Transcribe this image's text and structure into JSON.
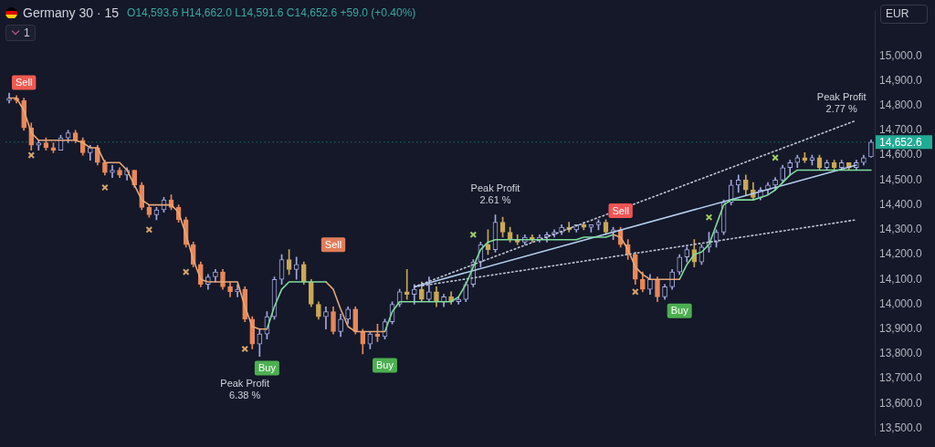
{
  "chart_data": {
    "type": "candlestick",
    "title": "Germany 30 · 15",
    "subtitle": "O14,593.6 H14,662.0 L14,591.6 C14,652.6 +59.0 (+0.40%)",
    "ylabel": "EUR",
    "categories": [
      null,
      null,
      null,
      null,
      null,
      null,
      null,
      null,
      null,
      null,
      null,
      null,
      null,
      null,
      null,
      null,
      null,
      null,
      null,
      null,
      null,
      null,
      null,
      null,
      null,
      null,
      null,
      null,
      null,
      null,
      null,
      null,
      null,
      null,
      null,
      null,
      null,
      null,
      null,
      null,
      null,
      null,
      null,
      null,
      null,
      null,
      null,
      null,
      null,
      null,
      null,
      null,
      null,
      null,
      null,
      null,
      null,
      null,
      null,
      null,
      null,
      null,
      null,
      null,
      null,
      null,
      null,
      null,
      null,
      null,
      null,
      null,
      null,
      null,
      null,
      null,
      null,
      null,
      null,
      null,
      null,
      null,
      null,
      null,
      null,
      null,
      null,
      null,
      null,
      null,
      null,
      null,
      null,
      null,
      null,
      null,
      null,
      null,
      null,
      null,
      null,
      null,
      null,
      null,
      null,
      null,
      null,
      null,
      null,
      null,
      null,
      null,
      null,
      null,
      null,
      null,
      null,
      null
    ],
    "ohlc": [
      [
        14820,
        14850,
        14810,
        14830
      ],
      [
        14830,
        14840,
        14810,
        14820
      ],
      [
        14820,
        14830,
        14700,
        14710
      ],
      [
        14710,
        14730,
        14620,
        14640
      ],
      [
        14640,
        14660,
        14620,
        14650
      ],
      [
        14650,
        14670,
        14620,
        14630
      ],
      [
        14630,
        14650,
        14610,
        14620
      ],
      [
        14620,
        14680,
        14620,
        14670
      ],
      [
        14670,
        14700,
        14650,
        14690
      ],
      [
        14690,
        14700,
        14650,
        14660
      ],
      [
        14660,
        14670,
        14600,
        14610
      ],
      [
        14610,
        14640,
        14580,
        14630
      ],
      [
        14630,
        14640,
        14560,
        14570
      ],
      [
        14570,
        14580,
        14520,
        14530
      ],
      [
        14530,
        14560,
        14510,
        14540
      ],
      [
        14540,
        14550,
        14510,
        14520
      ],
      [
        14520,
        14550,
        14500,
        14540
      ],
      [
        14540,
        14540,
        14470,
        14480
      ],
      [
        14480,
        14490,
        14380,
        14390
      ],
      [
        14390,
        14400,
        14350,
        14360
      ],
      [
        14360,
        14390,
        14340,
        14380
      ],
      [
        14380,
        14430,
        14370,
        14420
      ],
      [
        14420,
        14440,
        14380,
        14390
      ],
      [
        14390,
        14400,
        14330,
        14340
      ],
      [
        14340,
        14350,
        14230,
        14240
      ],
      [
        14240,
        14250,
        14150,
        14160
      ],
      [
        14160,
        14170,
        14070,
        14080
      ],
      [
        14080,
        14120,
        14060,
        14110
      ],
      [
        14110,
        14140,
        14090,
        14130
      ],
      [
        14130,
        14140,
        14060,
        14070
      ],
      [
        14070,
        14090,
        14030,
        14050
      ],
      [
        14050,
        14080,
        14030,
        14060
      ],
      [
        14060,
        14070,
        13930,
        13940
      ],
      [
        13940,
        13950,
        13820,
        13840
      ],
      [
        13840,
        13900,
        13790,
        13880
      ],
      [
        13880,
        13970,
        13860,
        13950
      ],
      [
        13950,
        14110,
        13940,
        14100
      ],
      [
        14100,
        14200,
        14080,
        14180
      ],
      [
        14180,
        14220,
        14120,
        14140
      ],
      [
        14140,
        14190,
        14100,
        14160
      ],
      [
        14160,
        14170,
        14080,
        14090
      ],
      [
        14090,
        14100,
        13990,
        14000
      ],
      [
        14000,
        14010,
        13940,
        13950
      ],
      [
        13950,
        13990,
        13900,
        13970
      ],
      [
        13970,
        13990,
        13880,
        13890
      ],
      [
        13890,
        13960,
        13870,
        13940
      ],
      [
        13940,
        13990,
        13920,
        13980
      ],
      [
        13980,
        13990,
        13880,
        13890
      ],
      [
        13890,
        13900,
        13800,
        13840
      ],
      [
        13840,
        13890,
        13820,
        13880
      ],
      [
        13880,
        13920,
        13850,
        13870
      ],
      [
        13870,
        13940,
        13860,
        13930
      ],
      [
        13930,
        14010,
        13920,
        14000
      ],
      [
        14000,
        14060,
        13990,
        14050
      ],
      [
        14050,
        14140,
        14020,
        14040
      ],
      [
        14040,
        14080,
        14000,
        14060
      ],
      [
        14060,
        14090,
        14010,
        14020
      ],
      [
        14020,
        14110,
        14010,
        14050
      ],
      [
        14050,
        14070,
        13990,
        14010
      ],
      [
        14010,
        14040,
        13990,
        14030
      ],
      [
        14030,
        14050,
        14000,
        14010
      ],
      [
        14010,
        14030,
        14000,
        14020
      ],
      [
        14020,
        14090,
        14010,
        14080
      ],
      [
        14080,
        14180,
        14070,
        14170
      ],
      [
        14170,
        14250,
        14150,
        14240
      ],
      [
        14240,
        14300,
        14200,
        14220
      ],
      [
        14220,
        14360,
        14210,
        14330
      ],
      [
        14330,
        14350,
        14270,
        14290
      ],
      [
        14290,
        14310,
        14250,
        14260
      ],
      [
        14260,
        14280,
        14240,
        14250
      ],
      [
        14250,
        14280,
        14240,
        14270
      ],
      [
        14270,
        14280,
        14250,
        14260
      ],
      [
        14260,
        14280,
        14250,
        14270
      ],
      [
        14270,
        14290,
        14250,
        14280
      ],
      [
        14280,
        14300,
        14270,
        14290
      ],
      [
        14290,
        14320,
        14280,
        14310
      ],
      [
        14310,
        14330,
        14290,
        14300
      ],
      [
        14300,
        14320,
        14290,
        14320
      ],
      [
        14320,
        14330,
        14300,
        14310
      ],
      [
        14310,
        14320,
        14290,
        14320
      ],
      [
        14320,
        14340,
        14300,
        14330
      ],
      [
        14330,
        14340,
        14280,
        14290
      ],
      [
        14290,
        14310,
        14260,
        14300
      ],
      [
        14300,
        14310,
        14230,
        14240
      ],
      [
        14240,
        14260,
        14180,
        14200
      ],
      [
        14200,
        14210,
        14080,
        14100
      ],
      [
        14100,
        14130,
        14050,
        14060
      ],
      [
        14060,
        14120,
        14040,
        14100
      ],
      [
        14100,
        14110,
        14010,
        14030
      ],
      [
        14030,
        14080,
        14020,
        14070
      ],
      [
        14070,
        14140,
        14060,
        14130
      ],
      [
        14130,
        14200,
        14120,
        14190
      ],
      [
        14190,
        14230,
        14170,
        14220
      ],
      [
        14220,
        14260,
        14150,
        14170
      ],
      [
        14170,
        14240,
        14160,
        14230
      ],
      [
        14230,
        14290,
        14210,
        14250
      ],
      [
        14250,
        14300,
        14230,
        14290
      ],
      [
        14290,
        14420,
        14280,
        14410
      ],
      [
        14410,
        14500,
        14400,
        14480
      ],
      [
        14480,
        14520,
        14450,
        14500
      ],
      [
        14500,
        14520,
        14440,
        14460
      ],
      [
        14460,
        14490,
        14420,
        14430
      ],
      [
        14430,
        14470,
        14420,
        14460
      ],
      [
        14460,
        14490,
        14440,
        14480
      ],
      [
        14480,
        14510,
        14460,
        14500
      ],
      [
        14500,
        14560,
        14490,
        14550
      ],
      [
        14550,
        14580,
        14520,
        14570
      ],
      [
        14570,
        14600,
        14550,
        14590
      ],
      [
        14590,
        14610,
        14570,
        14580
      ],
      [
        14580,
        14600,
        14560,
        14590
      ],
      [
        14590,
        14600,
        14540,
        14550
      ],
      [
        14550,
        14580,
        14540,
        14570
      ],
      [
        14570,
        14580,
        14540,
        14550
      ],
      [
        14550,
        14580,
        14540,
        14570
      ],
      [
        14570,
        14570,
        14540,
        14550
      ],
      [
        14550,
        14580,
        14540,
        14570
      ],
      [
        14570,
        14600,
        14560,
        14590
      ],
      [
        14593.6,
        14662.0,
        14591.6,
        14652.6
      ]
    ],
    "colors": [
      "#a3a8e0",
      "#e8885a",
      "#e8885a",
      "#e8885a",
      "#a3a8e0",
      "#e8885a",
      "#e8885a",
      "#a3a8e0",
      "#a3a8e0",
      "#e8885a",
      "#e8885a",
      "#a3a8e0",
      "#e8885a",
      "#e8885a",
      "#a3a8e0",
      "#e8885a",
      "#a3a8e0",
      "#e8885a",
      "#e8885a",
      "#e8885a",
      "#a3a8e0",
      "#a3a8e0",
      "#e8885a",
      "#e8885a",
      "#e8885a",
      "#e8885a",
      "#e8885a",
      "#a3a8e0",
      "#a3a8e0",
      "#e8885a",
      "#e8885a",
      "#a3a8e0",
      "#e8885a",
      "#e8885a",
      "#a3a8e0",
      "#a3a8e0",
      "#a3a8e0",
      "#a3a8e0",
      "#c9a855",
      "#a3a8e0",
      "#c9a855",
      "#c9a855",
      "#c9a855",
      "#a3a8e0",
      "#e8885a",
      "#a3a8e0",
      "#a3a8e0",
      "#e8885a",
      "#e8885a",
      "#a3a8e0",
      "#e8885a",
      "#a3a8e0",
      "#a3a8e0",
      "#a3a8e0",
      "#c9a855",
      "#a3a8e0",
      "#c9a855",
      "#a3a8e0",
      "#c9a855",
      "#a3a8e0",
      "#c9a855",
      "#a3a8e0",
      "#a3a8e0",
      "#a3a8e0",
      "#a3a8e0",
      "#c9a855",
      "#a3a8e0",
      "#c9a855",
      "#c9a855",
      "#c9a855",
      "#a3a8e0",
      "#c9a855",
      "#a3a8e0",
      "#a3a8e0",
      "#a3a8e0",
      "#a3a8e0",
      "#c9a855",
      "#a3a8e0",
      "#c9a855",
      "#a3a8e0",
      "#a3a8e0",
      "#c9a855",
      "#a3a8e0",
      "#e8885a",
      "#e8885a",
      "#e8885a",
      "#e8885a",
      "#a3a8e0",
      "#e8885a",
      "#a3a8e0",
      "#a3a8e0",
      "#a3a8e0",
      "#a3a8e0",
      "#c9a855",
      "#a3a8e0",
      "#a3a8e0",
      "#a3a8e0",
      "#a3a8e0",
      "#a3a8e0",
      "#a3a8e0",
      "#c9a855",
      "#c9a855",
      "#a3a8e0",
      "#a3a8e0",
      "#a3a8e0",
      "#a3a8e0",
      "#a3a8e0",
      "#a3a8e0",
      "#c9a855",
      "#a3a8e0",
      "#c9a855",
      "#a3a8e0",
      "#c9a855",
      "#a3a8e0",
      "#c9a855",
      "#a3a8e0",
      "#a3a8e0",
      "#a3a8e0"
    ],
    "series": [
      {
        "type": "line",
        "color": "#e8a878",
        "values": [
          14830,
          14830,
          14780,
          14690,
          14660,
          14660,
          14660,
          14660,
          14660,
          14660,
          14650,
          14630,
          14630,
          14570,
          14570,
          14570,
          14540,
          14480,
          14420,
          14400,
          14400,
          14400,
          14400,
          14370,
          14280,
          14180,
          14100,
          14090,
          14090,
          14090,
          14090,
          14090,
          13990,
          13910,
          13900,
          13900,
          null,
          null,
          null,
          null,
          null,
          null,
          null,
          null,
          null,
          null,
          null,
          null,
          null,
          null,
          null,
          null,
          null,
          null,
          null,
          null,
          null,
          null,
          null,
          null,
          null,
          null,
          null,
          null,
          null,
          null,
          null,
          null,
          null,
          null,
          null,
          null,
          null,
          null,
          null,
          null,
          null,
          null,
          null,
          null,
          null,
          null,
          null,
          null,
          null,
          null,
          null,
          null,
          null,
          null,
          null,
          null,
          null,
          null,
          null,
          null,
          null,
          null,
          null,
          null,
          null,
          null,
          null,
          null,
          null,
          null,
          null,
          null,
          null,
          null,
          null,
          null,
          null,
          null,
          null,
          null,
          null,
          null
        ]
      },
      {
        "type": "line",
        "color": "#7fdc9c",
        "values": [
          null,
          null,
          null,
          null,
          null,
          null,
          null,
          null,
          null,
          null,
          null,
          null,
          null,
          null,
          null,
          null,
          null,
          null,
          null,
          null,
          null,
          null,
          null,
          null,
          null,
          null,
          null,
          null,
          null,
          null,
          null,
          null,
          null,
          null,
          null,
          13900,
          13990,
          14060,
          14090,
          14090,
          14090,
          14090,
          14090,
          14090,
          null,
          null,
          null,
          null,
          null,
          null,
          null,
          null,
          null,
          null,
          null,
          null,
          null,
          null,
          null,
          null,
          null,
          null,
          null,
          null,
          null,
          null,
          null,
          null,
          null,
          null,
          null,
          null,
          null,
          null,
          null,
          null,
          null,
          null,
          null,
          null,
          null,
          null,
          null,
          null,
          null,
          null,
          null,
          null,
          null,
          null,
          null,
          null,
          null,
          null,
          null,
          null,
          null,
          null,
          null,
          null,
          null,
          null,
          null,
          null,
          null,
          null,
          null,
          null,
          null,
          null,
          null,
          null,
          null,
          null,
          null,
          null,
          null,
          null
        ]
      },
      {
        "type": "line",
        "color": "#e8a878",
        "values": [
          null,
          null,
          null,
          null,
          null,
          null,
          null,
          null,
          null,
          null,
          null,
          null,
          null,
          null,
          null,
          null,
          null,
          null,
          null,
          null,
          null,
          null,
          null,
          null,
          null,
          null,
          null,
          null,
          null,
          null,
          null,
          null,
          null,
          null,
          null,
          null,
          null,
          null,
          null,
          null,
          null,
          null,
          null,
          14090,
          14060,
          13980,
          13910,
          13890,
          13890,
          13890,
          13890,
          13890,
          null,
          null,
          null,
          null,
          null,
          null,
          null,
          null,
          null,
          null,
          null,
          null,
          null,
          null,
          null,
          null,
          null,
          null,
          null,
          null,
          null,
          null,
          null,
          null,
          null,
          null,
          null,
          null,
          null,
          null,
          null,
          null,
          null,
          null,
          null,
          null,
          null,
          null,
          null,
          null,
          null,
          null,
          null,
          null,
          null,
          null,
          null,
          null,
          null,
          null,
          null,
          null,
          null,
          null,
          null,
          null,
          null,
          null,
          null,
          null,
          null,
          null,
          null,
          null,
          null,
          null
        ]
      },
      {
        "type": "line",
        "color": "#7fdc9c",
        "values": [
          null,
          null,
          null,
          null,
          null,
          null,
          null,
          null,
          null,
          null,
          null,
          null,
          null,
          null,
          null,
          null,
          null,
          null,
          null,
          null,
          null,
          null,
          null,
          null,
          null,
          null,
          null,
          null,
          null,
          null,
          null,
          null,
          null,
          null,
          null,
          null,
          null,
          null,
          null,
          null,
          null,
          null,
          null,
          null,
          null,
          null,
          null,
          null,
          null,
          null,
          null,
          13890,
          13970,
          14010,
          14010,
          14010,
          14010,
          14010,
          14010,
          14010,
          14010,
          14030,
          14080,
          14150,
          14220,
          14250,
          14260,
          14260,
          14260,
          14260,
          14260,
          14260,
          14260,
          14260,
          14260,
          14260,
          14260,
          14260,
          14270,
          14270,
          14270,
          14270,
          14280,
          null,
          null,
          null,
          null,
          null,
          null,
          null,
          null,
          null,
          null,
          null,
          null,
          null,
          null,
          null,
          null,
          null,
          null,
          null,
          null,
          null,
          null,
          null,
          null,
          null,
          null,
          null,
          null,
          null,
          null,
          null,
          null,
          null,
          null,
          null
        ]
      },
      {
        "type": "line",
        "color": "#e8a878",
        "values": [
          null,
          null,
          null,
          null,
          null,
          null,
          null,
          null,
          null,
          null,
          null,
          null,
          null,
          null,
          null,
          null,
          null,
          null,
          null,
          null,
          null,
          null,
          null,
          null,
          null,
          null,
          null,
          null,
          null,
          null,
          null,
          null,
          null,
          null,
          null,
          null,
          null,
          null,
          null,
          null,
          null,
          null,
          null,
          null,
          null,
          null,
          null,
          null,
          null,
          null,
          null,
          null,
          null,
          null,
          null,
          null,
          null,
          null,
          null,
          null,
          null,
          null,
          null,
          null,
          null,
          null,
          null,
          null,
          null,
          null,
          null,
          null,
          null,
          null,
          null,
          null,
          null,
          null,
          null,
          null,
          null,
          null,
          14280,
          14270,
          14220,
          14150,
          14120,
          14100,
          14100,
          14100,
          14100,
          14100,
          null,
          null,
          null,
          null,
          null,
          null,
          null,
          null,
          null,
          null,
          null,
          null,
          null,
          null,
          null,
          null,
          null,
          null,
          null,
          null,
          null,
          null,
          null,
          null,
          null,
          null
        ]
      },
      {
        "type": "line",
        "color": "#7fdc9c",
        "values": [
          null,
          null,
          null,
          null,
          null,
          null,
          null,
          null,
          null,
          null,
          null,
          null,
          null,
          null,
          null,
          null,
          null,
          null,
          null,
          null,
          null,
          null,
          null,
          null,
          null,
          null,
          null,
          null,
          null,
          null,
          null,
          null,
          null,
          null,
          null,
          null,
          null,
          null,
          null,
          null,
          null,
          null,
          null,
          null,
          null,
          null,
          null,
          null,
          null,
          null,
          null,
          null,
          null,
          null,
          null,
          null,
          null,
          null,
          null,
          null,
          null,
          null,
          null,
          null,
          null,
          null,
          null,
          null,
          null,
          null,
          null,
          null,
          null,
          null,
          null,
          null,
          null,
          null,
          null,
          null,
          null,
          null,
          null,
          null,
          null,
          null,
          null,
          null,
          null,
          null,
          null,
          14100,
          14160,
          14200,
          14210,
          14240,
          14320,
          14400,
          14420,
          14420,
          14420,
          14420,
          14430,
          14440,
          14460,
          14490,
          14520,
          14540,
          14540,
          14540,
          14540,
          14540,
          14540,
          14540,
          14540,
          14540,
          14540,
          14540
        ]
      },
      {
        "type": "scatter",
        "color": "#d9a46a",
        "marker": "cross",
        "values": [
          null,
          null,
          null,
          14600,
          null,
          null,
          null,
          null,
          null,
          null,
          null,
          null,
          null,
          14470,
          null,
          null,
          null,
          null,
          null,
          14300,
          null,
          null,
          null,
          null,
          14130,
          null,
          null,
          null,
          null,
          null,
          null,
          null,
          13820,
          null,
          null,
          null,
          null,
          null,
          null,
          null,
          null,
          null,
          null,
          null,
          null,
          null,
          null,
          null,
          null,
          null,
          null,
          null,
          null,
          null,
          null,
          null,
          null,
          null,
          null,
          null,
          null,
          null,
          null,
          null,
          null,
          null,
          null,
          null,
          null,
          null,
          null,
          null,
          null,
          null,
          null,
          null,
          null,
          null,
          null,
          null,
          null,
          null,
          null,
          null,
          null,
          14050,
          null,
          null,
          null,
          null,
          null,
          null,
          null,
          null,
          null,
          null,
          null,
          null,
          null,
          null,
          null,
          null,
          null,
          null,
          null,
          null,
          null,
          null,
          null,
          null,
          null,
          null,
          null,
          null,
          null,
          null,
          null,
          null
        ]
      },
      {
        "type": "scatter",
        "color": "#9ccc65",
        "marker": "cross",
        "values": [
          null,
          null,
          null,
          null,
          null,
          null,
          null,
          null,
          null,
          null,
          null,
          null,
          null,
          null,
          null,
          null,
          null,
          null,
          null,
          null,
          null,
          null,
          null,
          null,
          null,
          null,
          null,
          null,
          null,
          null,
          null,
          null,
          null,
          null,
          null,
          null,
          null,
          null,
          null,
          null,
          null,
          null,
          null,
          null,
          null,
          null,
          null,
          null,
          null,
          null,
          null,
          null,
          null,
          null,
          null,
          null,
          null,
          null,
          null,
          null,
          null,
          null,
          null,
          14280,
          null,
          null,
          null,
          null,
          null,
          null,
          null,
          null,
          null,
          null,
          null,
          null,
          null,
          null,
          null,
          null,
          null,
          null,
          null,
          null,
          null,
          null,
          null,
          null,
          null,
          null,
          null,
          null,
          null,
          null,
          null,
          14350,
          null,
          null,
          null,
          null,
          null,
          null,
          null,
          null,
          14590,
          null,
          null,
          null,
          null,
          null,
          null,
          null,
          null,
          null,
          null,
          null,
          null,
          null
        ]
      },
      {
        "type": "line",
        "color": "#c0c6d4",
        "line_style": "dotted",
        "values": [
          null,
          null,
          null,
          null,
          null,
          null,
          null,
          null,
          null,
          null,
          null,
          null,
          null,
          null,
          null,
          null,
          null,
          null,
          null,
          null,
          null,
          null,
          null,
          null,
          null,
          null,
          null,
          null,
          null,
          null,
          null,
          null,
          null,
          null,
          null,
          null,
          null,
          null,
          null,
          null,
          null,
          null,
          null,
          null,
          null,
          null,
          null,
          null,
          null,
          null,
          null,
          null,
          null,
          null,
          null,
          14070,
          null,
          null,
          null,
          null,
          null,
          null,
          null,
          null,
          null,
          null,
          null,
          null,
          null,
          null,
          null,
          null,
          null,
          null,
          null,
          null,
          null,
          null,
          null,
          null,
          null,
          null,
          null,
          null,
          null,
          null,
          null,
          null,
          null,
          null,
          null,
          null,
          null,
          null,
          null,
          null,
          null,
          null,
          null,
          null,
          null,
          null,
          null,
          null,
          null,
          null,
          null,
          null,
          null,
          null,
          null,
          null,
          null,
          null,
          null,
          14740,
          null,
          null
        ]
      },
      {
        "type": "line",
        "color": "#b3cfee",
        "line_style": "solid",
        "values": [
          null,
          null,
          null,
          null,
          null,
          null,
          null,
          null,
          null,
          null,
          null,
          null,
          null,
          null,
          null,
          null,
          null,
          null,
          null,
          null,
          null,
          null,
          null,
          null,
          null,
          null,
          null,
          null,
          null,
          null,
          null,
          null,
          null,
          null,
          null,
          null,
          null,
          null,
          null,
          null,
          null,
          null,
          null,
          null,
          null,
          null,
          null,
          null,
          null,
          null,
          null,
          null,
          null,
          null,
          null,
          14070,
          null,
          null,
          null,
          null,
          null,
          null,
          null,
          null,
          null,
          null,
          null,
          null,
          null,
          null,
          null,
          null,
          null,
          null,
          null,
          null,
          null,
          null,
          null,
          null,
          null,
          null,
          null,
          null,
          null,
          null,
          null,
          null,
          null,
          null,
          null,
          null,
          null,
          null,
          null,
          null,
          null,
          null,
          null,
          null,
          null,
          null,
          null,
          null,
          null,
          null,
          null,
          null,
          null,
          null,
          null,
          null,
          null,
          null,
          null,
          14560,
          null,
          null
        ]
      },
      {
        "type": "line",
        "color": "#c0c6d4",
        "line_style": "dotted",
        "values": [
          null,
          null,
          null,
          null,
          null,
          null,
          null,
          null,
          null,
          null,
          null,
          null,
          null,
          null,
          null,
          null,
          null,
          null,
          null,
          null,
          null,
          null,
          null,
          null,
          null,
          null,
          null,
          null,
          null,
          null,
          null,
          null,
          null,
          null,
          null,
          null,
          null,
          null,
          null,
          null,
          null,
          null,
          null,
          null,
          null,
          null,
          null,
          null,
          null,
          null,
          null,
          null,
          null,
          null,
          null,
          14070,
          null,
          null,
          null,
          null,
          null,
          null,
          null,
          null,
          null,
          null,
          null,
          null,
          null,
          null,
          null,
          null,
          null,
          null,
          null,
          null,
          null,
          null,
          null,
          null,
          null,
          null,
          null,
          null,
          null,
          null,
          null,
          null,
          null,
          null,
          null,
          null,
          null,
          null,
          null,
          null,
          null,
          null,
          null,
          null,
          null,
          null,
          null,
          null,
          null,
          null,
          null,
          null,
          null,
          null,
          null,
          null,
          null,
          null,
          null,
          14340,
          null,
          null
        ]
      }
    ],
    "ylim": [
      13470,
      15180
    ],
    "yticks": [
      {
        "value": 13500,
        "label": "13,500.0"
      },
      {
        "value": 13600,
        "label": "13,600.0"
      },
      {
        "value": 13700,
        "label": "13,700.0"
      },
      {
        "value": 13800,
        "label": "13,800.0"
      },
      {
        "value": 13900,
        "label": "13,900.0"
      },
      {
        "value": 14000,
        "label": "14,000.0"
      },
      {
        "value": 14100,
        "label": "14,100.0"
      },
      {
        "value": 14200,
        "label": "14,200.0"
      },
      {
        "value": 14300,
        "label": "14,300.0"
      },
      {
        "value": 14400,
        "label": "14,400.0"
      },
      {
        "value": 14500,
        "label": "14,500.0"
      },
      {
        "value": 14600,
        "label": "14,600.0"
      },
      {
        "value": 14700,
        "label": "14,700.0"
      },
      {
        "value": 14800,
        "label": "14,800.0"
      },
      {
        "value": 14900,
        "label": "14,900.0"
      },
      {
        "value": 15000,
        "label": "15,000.0"
      }
    ],
    "ref_lines": [
      {
        "axis": "y",
        "value": 14652.6,
        "label": "14,652.6",
        "color": "#22ab94",
        "line_style": "dotted"
      }
    ],
    "annotations": [
      "Sell",
      "Buy",
      "Peak Profit\n6.38 %",
      "Sell",
      "Buy",
      "Peak Profit\n2.61 %",
      "Sell",
      "Buy",
      "Peak Profit\n2.77 %",
      "1"
    ],
    "tick_labels": "y"
  }
}
